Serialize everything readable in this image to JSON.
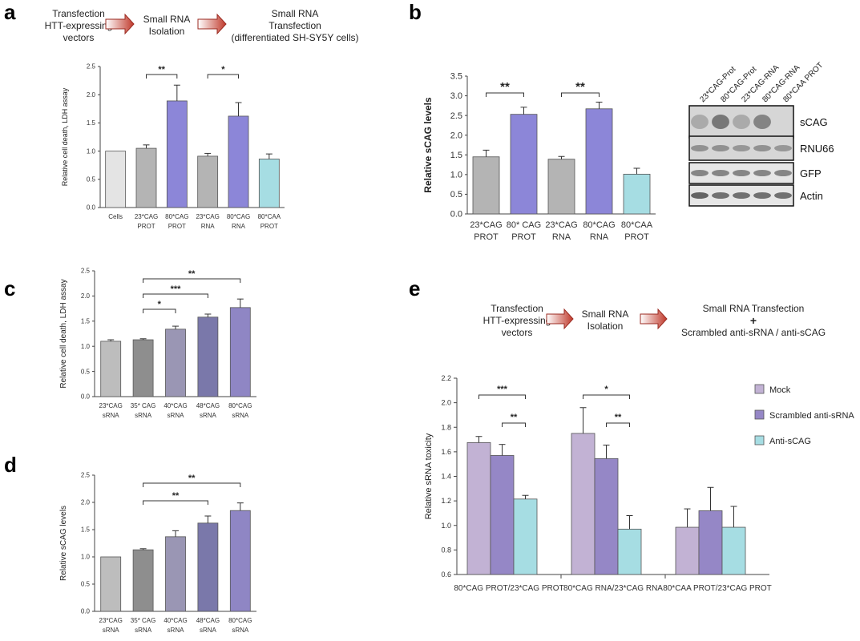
{
  "panels": {
    "a": "a",
    "b": "b",
    "c": "c",
    "d": "d",
    "e": "e"
  },
  "flow_a": {
    "step1": [
      "Transfection",
      "HTT-expressing",
      "vectors"
    ],
    "step2": [
      "Small RNA",
      "Isolation"
    ],
    "step3": [
      "Small RNA",
      "Transfection",
      "(differentiated SH-SY5Y cells)"
    ]
  },
  "flow_e": {
    "step1": [
      "Transfection",
      "HTT-expressing",
      "vectors"
    ],
    "step2": [
      "Small RNA",
      "Isolation"
    ],
    "step3": [
      "Small RNA Transfection",
      "+",
      "Scrambled  anti-sRNA / anti-sCAG"
    ]
  },
  "blot": {
    "lane_labels": [
      "23*CAG-Prot",
      "80*CAG-Prot",
      "23*CAG-RNA",
      "80*CAG-RNA",
      "80*CAA PROT"
    ],
    "rows": [
      "sCAG",
      "RNU66",
      "GFP",
      "Actin"
    ]
  },
  "colors": {
    "light_gray": "#e4e4e4",
    "mid_gray": "#b4b4b4",
    "purple": "#8c86d8",
    "light_blue": "#a6dde3",
    "mock": "#c2b2d4",
    "scrambled": "#9587c6",
    "anti": "#a6dde3",
    "arrow": "#c0392b"
  },
  "chart_data": [
    {
      "id": "a",
      "type": "bar",
      "categories": [
        [
          "Cells"
        ],
        [
          "23*CAG",
          "PROT"
        ],
        [
          "80*CAG",
          "PROT"
        ],
        [
          "23*CAG",
          "RNA"
        ],
        [
          "80*CAG",
          "RNA"
        ],
        [
          "80*CAA",
          "PROT"
        ]
      ],
      "values": [
        1.0,
        1.05,
        1.89,
        0.91,
        1.62,
        0.86
      ],
      "errors": [
        0,
        0.06,
        0.28,
        0.05,
        0.24,
        0.09
      ],
      "bar_colors": [
        "#e4e4e4",
        "#b4b4b4",
        "#8c86d8",
        "#b4b4b4",
        "#8c86d8",
        "#a6dde3"
      ],
      "ylabel": "Relative cell death, LDH assay",
      "ylim": [
        0,
        2.5
      ],
      "yticks": [
        "0.0",
        "0.5",
        "1.0",
        "1.5",
        "2.0",
        "2.5"
      ],
      "significance": [
        {
          "from": 1,
          "to": 2,
          "label": "**"
        },
        {
          "from": 3,
          "to": 4,
          "label": "*"
        }
      ]
    },
    {
      "id": "b",
      "type": "bar",
      "categories": [
        [
          "23*CAG",
          "PROT"
        ],
        [
          "80* CAG",
          "PROT"
        ],
        [
          "23*CAG",
          "RNA"
        ],
        [
          "80*CAG",
          "RNA"
        ],
        [
          "80*CAA",
          "PROT"
        ]
      ],
      "values": [
        1.45,
        2.53,
        1.39,
        2.67,
        1.01
      ],
      "errors": [
        0.17,
        0.18,
        0.07,
        0.17,
        0.15
      ],
      "bar_colors": [
        "#b4b4b4",
        "#8c86d8",
        "#b4b4b4",
        "#8c86d8",
        "#a6dde3"
      ],
      "ylabel": "Relative sCAG levels",
      "ylim": [
        0,
        3.5
      ],
      "yticks": [
        "0.0",
        "0.5",
        "1.0",
        "1.5",
        "2.0",
        "2.5",
        "3.0",
        "3.5"
      ],
      "significance": [
        {
          "from": 0,
          "to": 1,
          "label": "**"
        },
        {
          "from": 2,
          "to": 3,
          "label": "**"
        }
      ]
    },
    {
      "id": "c",
      "type": "bar",
      "categories": [
        [
          "23*CAG",
          "sRNA"
        ],
        [
          "35* CAG",
          "sRNA"
        ],
        [
          "40*CAG",
          "sRNA"
        ],
        [
          "48*CAG",
          "sRNA"
        ],
        [
          "80*CAG",
          "sRNA"
        ]
      ],
      "values": [
        1.1,
        1.13,
        1.34,
        1.58,
        1.77
      ],
      "errors": [
        0.03,
        0.02,
        0.06,
        0.06,
        0.17
      ],
      "bar_colors": [
        "#bdbdbd",
        "#8e8e8e",
        "#9a96b4",
        "#7a78aa",
        "#8f86c4"
      ],
      "ylabel": "Relative cell death, LDH assay",
      "ylim": [
        0,
        2.5
      ],
      "yticks": [
        "0.0",
        "0.5",
        "1.0",
        "1.5",
        "2.0",
        "2.5"
      ],
      "significance": [
        {
          "from": 1,
          "to": 2,
          "label": "*"
        },
        {
          "from": 1,
          "to": 3,
          "label": "***"
        },
        {
          "from": 1,
          "to": 4,
          "label": "**"
        }
      ]
    },
    {
      "id": "d",
      "type": "bar",
      "categories": [
        [
          "23*CAG",
          "sRNA"
        ],
        [
          "35* CAG",
          "sRNA"
        ],
        [
          "40*CAG",
          "sRNA"
        ],
        [
          "48*CAG",
          "sRNA"
        ],
        [
          "80*CAG",
          "sRNA"
        ]
      ],
      "values": [
        1.0,
        1.13,
        1.37,
        1.62,
        1.85
      ],
      "errors": [
        0,
        0.02,
        0.11,
        0.13,
        0.14
      ],
      "bar_colors": [
        "#bdbdbd",
        "#8e8e8e",
        "#9a96b4",
        "#7a78aa",
        "#8f86c4"
      ],
      "ylabel": "Relative sCAG levels",
      "ylim": [
        0,
        2.5
      ],
      "yticks": [
        "0.0",
        "0.5",
        "1.0",
        "1.5",
        "2.0",
        "2.5"
      ],
      "significance": [
        {
          "from": 1,
          "to": 3,
          "label": "**"
        },
        {
          "from": 1,
          "to": 4,
          "label": "**"
        }
      ]
    },
    {
      "id": "e",
      "type": "bar",
      "categories": [
        "80*CAG PROT/23*CAG PROT",
        "80*CAG RNA/23*CAG RNA",
        "80*CAA PROT/23*CAG PROT"
      ],
      "series": [
        {
          "name": "Mock",
          "values": [
            1.675,
            1.75,
            0.985
          ],
          "errors": [
            0.05,
            0.21,
            0.15
          ]
        },
        {
          "name": "Scrambled anti-sRNA",
          "values": [
            1.57,
            1.545,
            1.12
          ],
          "errors": [
            0.09,
            0.11,
            0.19
          ]
        },
        {
          "name": "Anti-sCAG",
          "values": [
            1.215,
            0.97,
            0.985
          ],
          "errors": [
            0.03,
            0.11,
            0.17
          ]
        }
      ],
      "ylabel": "Relative sRNA toxicity",
      "ylim": [
        0.6,
        2.2
      ],
      "yticks": [
        "0.6",
        "0.8",
        "1.0",
        "1.2",
        "1.4",
        "1.6",
        "1.8",
        "2.0",
        "2.2"
      ],
      "legend": "right",
      "significance": [
        {
          "group": 0,
          "from": 0,
          "to": 2,
          "label": "***"
        },
        {
          "group": 0,
          "from": 1,
          "to": 2,
          "label": "**"
        },
        {
          "group": 1,
          "from": 0,
          "to": 2,
          "label": "*"
        },
        {
          "group": 1,
          "from": 1,
          "to": 2,
          "label": "**"
        }
      ]
    }
  ]
}
